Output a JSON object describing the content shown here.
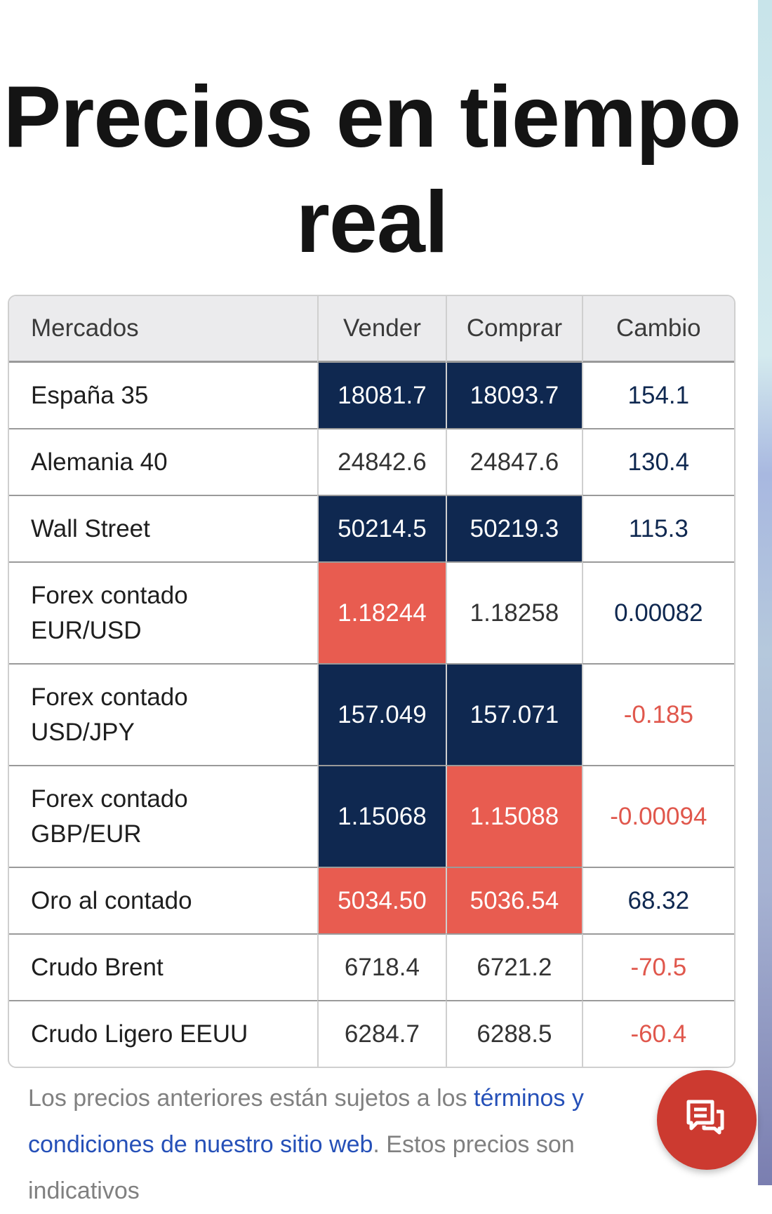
{
  "title": "Precios en tiempo real",
  "table": {
    "headers": [
      "Mercados",
      "Vender",
      "Comprar",
      "Cambio"
    ],
    "rows": [
      {
        "name": "España 35",
        "sell": "18081.7",
        "buy": "18093.7",
        "change": "154.1",
        "sell_style": "navy",
        "buy_style": "navy",
        "change_dir": "up"
      },
      {
        "name": "Alemania 40",
        "sell": "24842.6",
        "buy": "24847.6",
        "change": "130.4",
        "sell_style": "plain",
        "buy_style": "plain",
        "change_dir": "up"
      },
      {
        "name": "Wall Street",
        "sell": "50214.5",
        "buy": "50219.3",
        "change": "115.3",
        "sell_style": "navy",
        "buy_style": "navy",
        "change_dir": "up"
      },
      {
        "name": "Forex contado EUR/USD",
        "sell": "1.18244",
        "buy": "1.18258",
        "change": "0.00082",
        "sell_style": "red",
        "buy_style": "plain",
        "change_dir": "up"
      },
      {
        "name": "Forex contado USD/JPY",
        "sell": "157.049",
        "buy": "157.071",
        "change": "-0.185",
        "sell_style": "navy",
        "buy_style": "navy",
        "change_dir": "down"
      },
      {
        "name": "Forex contado GBP/EUR",
        "sell": "1.15068",
        "buy": "1.15088",
        "change": "-0.00094",
        "sell_style": "navy",
        "buy_style": "red",
        "change_dir": "down"
      },
      {
        "name": "Oro al contado",
        "sell": "5034.50",
        "buy": "5036.54",
        "change": "68.32",
        "sell_style": "red",
        "buy_style": "red",
        "change_dir": "up"
      },
      {
        "name": "Crudo Brent",
        "sell": "6718.4",
        "buy": "6721.2",
        "change": "-70.5",
        "sell_style": "plain",
        "buy_style": "plain",
        "change_dir": "down"
      },
      {
        "name": "Crudo Ligero EEUU",
        "sell": "6284.7",
        "buy": "6288.5",
        "change": "-60.4",
        "sell_style": "plain",
        "buy_style": "plain",
        "change_dir": "down"
      }
    ]
  },
  "footer": {
    "text1": "Los precios anteriores están sujetos a los ",
    "link": "términos y condiciones de nuestro sitio web",
    "text2": ". Estos precios son indicativos"
  },
  "chat_button": {
    "icon": "chat-icon",
    "color": "#cc3a30"
  },
  "colors": {
    "up": "#0f2850",
    "down": "#e0574c",
    "navy": "#0f2850",
    "red": "#e85c50",
    "link": "#2550b8"
  }
}
